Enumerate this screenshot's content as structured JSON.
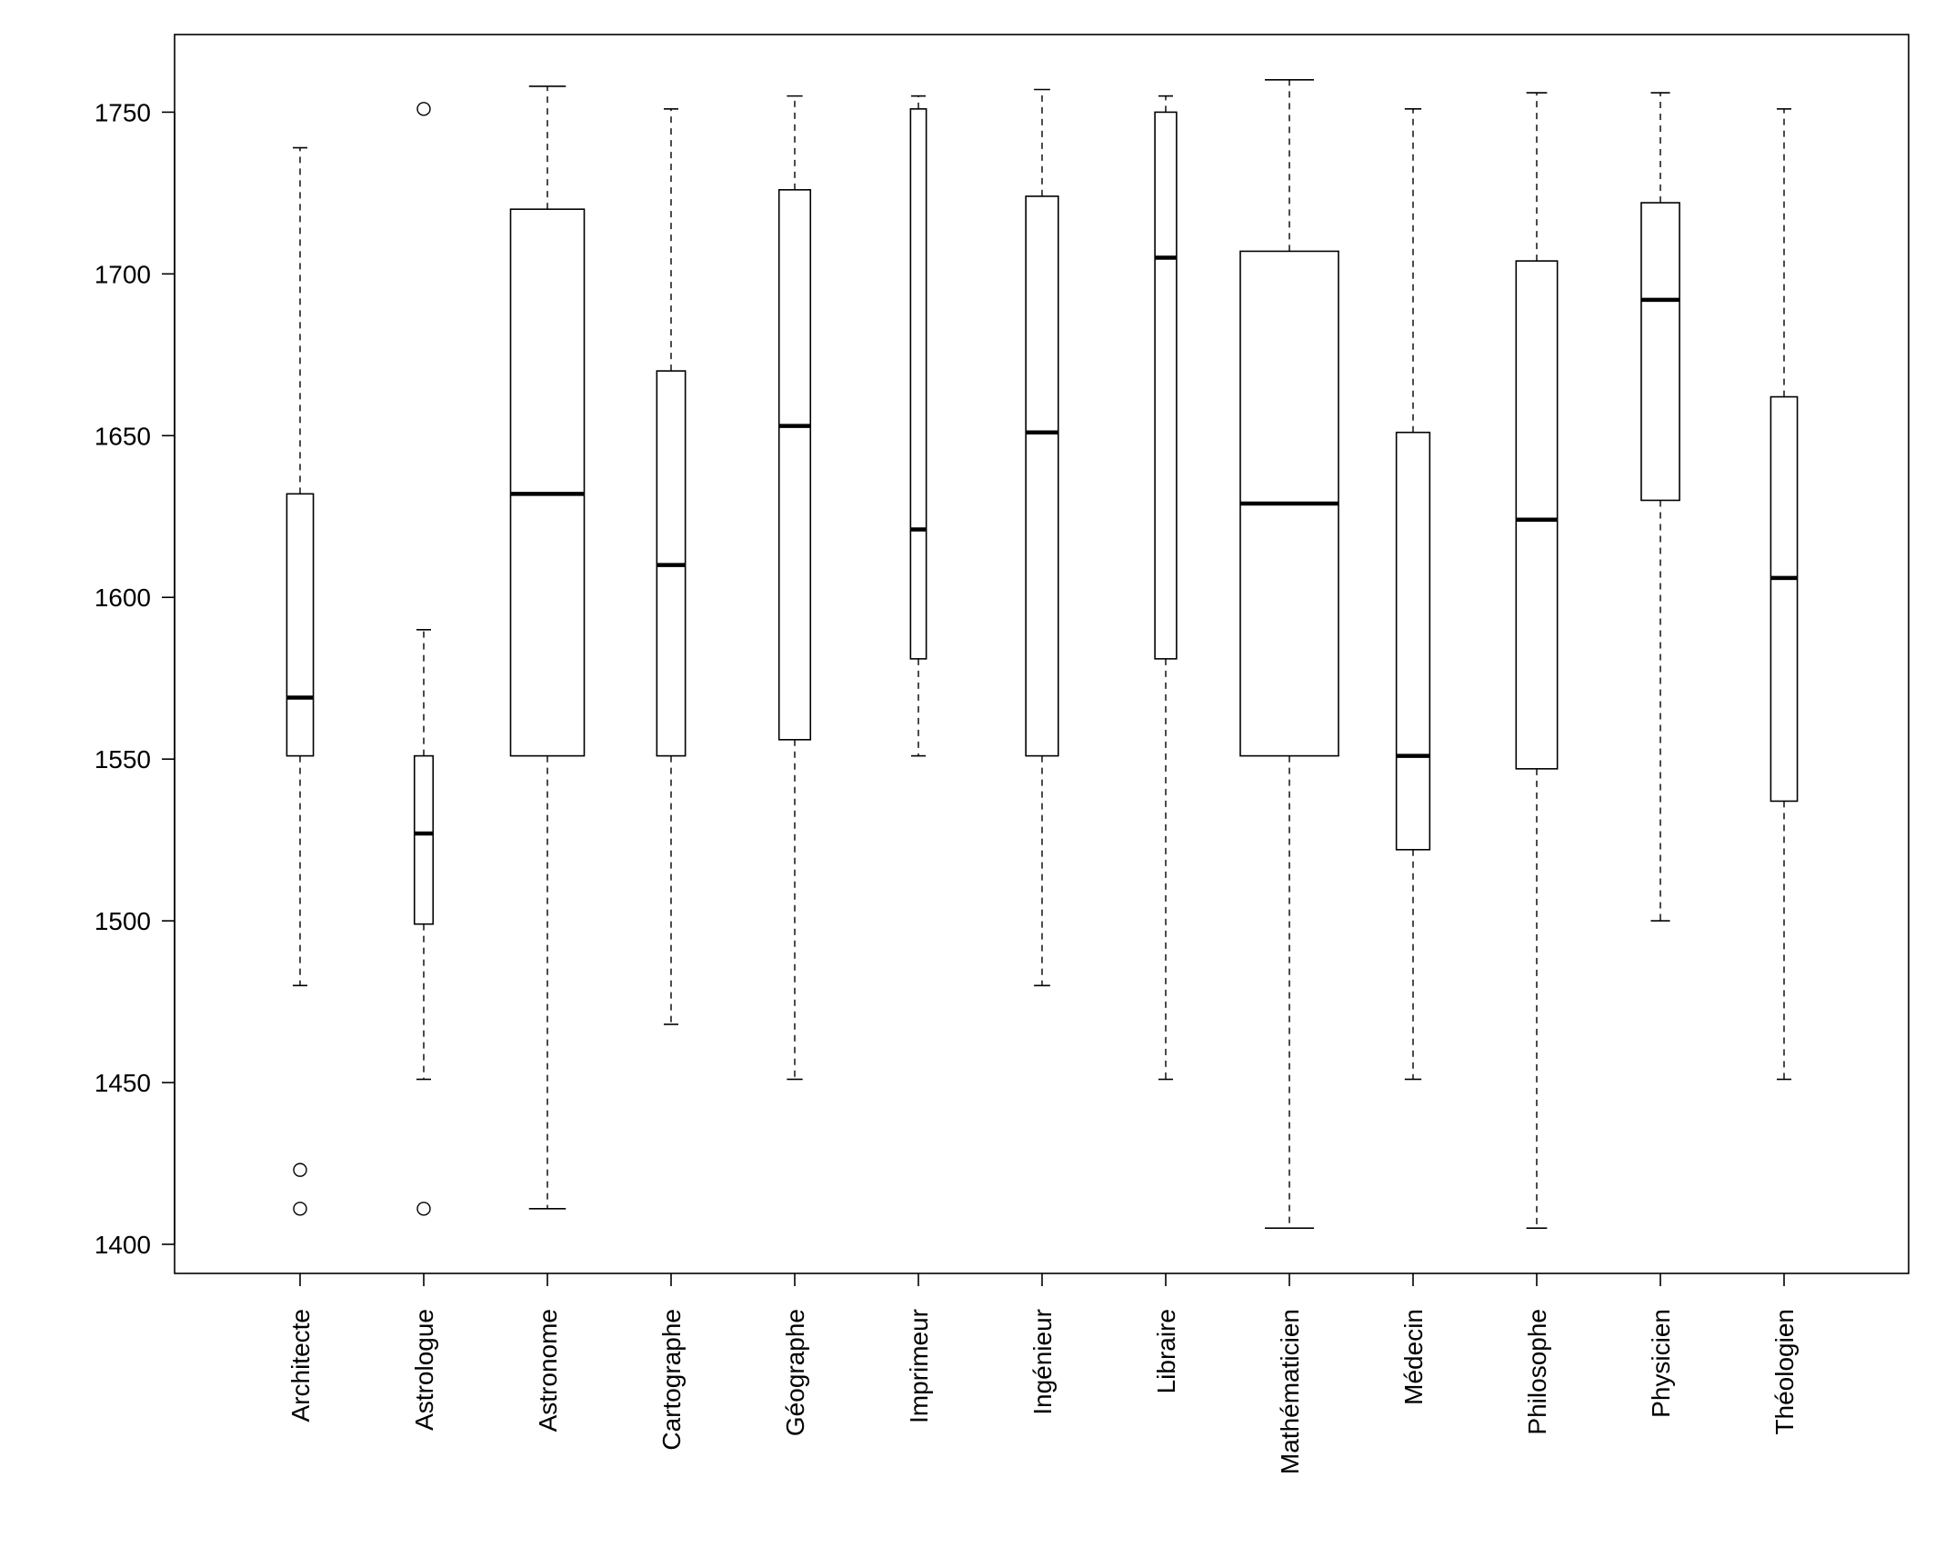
{
  "chart_data": {
    "type": "boxplot",
    "title": "",
    "xlabel": "",
    "ylabel": "",
    "ylim": [
      1391,
      1774
    ],
    "yticks": [
      1400,
      1450,
      1500,
      1550,
      1600,
      1650,
      1700,
      1750
    ],
    "ytick_labels": [
      "1400",
      "1450",
      "1500",
      "1550",
      "1600",
      "1650",
      "1700",
      "1750"
    ],
    "grid": false,
    "categories": [
      "Architecte",
      "Astrologue",
      "Astronome",
      "Cartographe",
      "Géographe",
      "Imprimeur",
      "Ingénieur",
      "Libraire",
      "Mathématicien",
      "Médecin",
      "Philosophe",
      "Physicien",
      "Théologien"
    ],
    "boxes": [
      {
        "min": 1480,
        "q1": 1551,
        "median": 1569,
        "q3": 1632,
        "max": 1739,
        "outliers": [
          1423,
          1411
        ],
        "relative_width": 0.27
      },
      {
        "min": 1451,
        "q1": 1499,
        "median": 1527,
        "q3": 1551,
        "max": 1590,
        "outliers": [
          1751,
          1411
        ],
        "relative_width": 0.19
      },
      {
        "min": 1411,
        "q1": 1551,
        "median": 1632,
        "q3": 1720,
        "max": 1758,
        "outliers": [],
        "relative_width": 0.75
      },
      {
        "min": 1468,
        "q1": 1551,
        "median": 1610,
        "q3": 1670,
        "max": 1751,
        "outliers": [],
        "relative_width": 0.29
      },
      {
        "min": 1451,
        "q1": 1556,
        "median": 1653,
        "q3": 1726,
        "max": 1755,
        "outliers": [],
        "relative_width": 0.32
      },
      {
        "min": 1551,
        "q1": 1581,
        "median": 1621,
        "q3": 1751,
        "max": 1755,
        "outliers": [],
        "relative_width": 0.16
      },
      {
        "min": 1480,
        "q1": 1551,
        "median": 1651,
        "q3": 1724,
        "max": 1757,
        "outliers": [],
        "relative_width": 0.33
      },
      {
        "min": 1451,
        "q1": 1581,
        "median": 1705,
        "q3": 1750,
        "max": 1755,
        "outliers": [],
        "relative_width": 0.22
      },
      {
        "min": 1405,
        "q1": 1551,
        "median": 1629,
        "q3": 1707,
        "max": 1760,
        "outliers": [],
        "relative_width": 1.0
      },
      {
        "min": 1451,
        "q1": 1522,
        "median": 1551,
        "q3": 1651,
        "max": 1751,
        "outliers": [],
        "relative_width": 0.34
      },
      {
        "min": 1405,
        "q1": 1547,
        "median": 1624,
        "q3": 1704,
        "max": 1756,
        "outliers": [],
        "relative_width": 0.42
      },
      {
        "min": 1500,
        "q1": 1630,
        "median": 1692,
        "q3": 1722,
        "max": 1756,
        "outliers": [],
        "relative_width": 0.39
      },
      {
        "min": 1451,
        "q1": 1537,
        "median": 1606,
        "q3": 1662,
        "max": 1751,
        "outliers": [],
        "relative_width": 0.27
      }
    ]
  }
}
